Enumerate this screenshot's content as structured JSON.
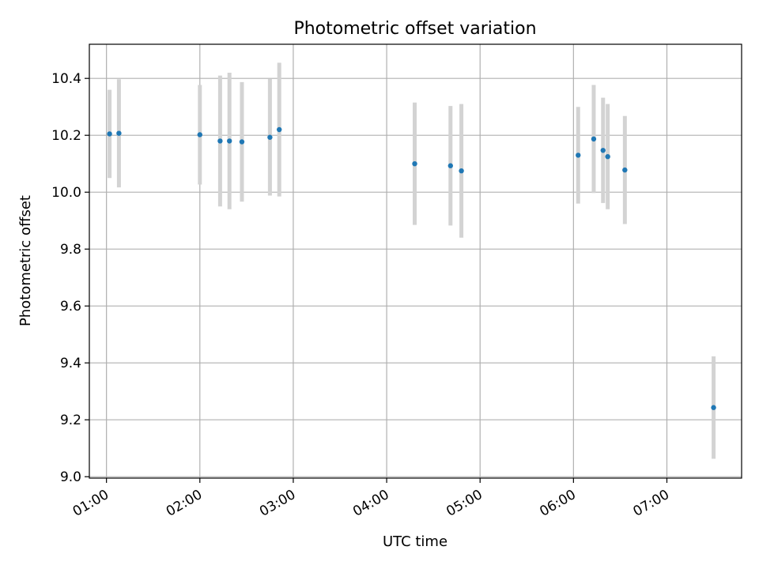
{
  "chart_data": {
    "type": "scatter",
    "title": "Photometric offset variation",
    "xlabel": "UTC time",
    "ylabel": "Photometric offset",
    "x_axis_type": "time",
    "xlim": [
      "00:49",
      "07:48"
    ],
    "ylim": [
      8.995,
      10.52
    ],
    "xticks": [
      "01:00",
      "02:00",
      "03:00",
      "04:00",
      "05:00",
      "06:00",
      "07:00"
    ],
    "yticks": [
      "9.0",
      "9.2",
      "9.4",
      "9.6",
      "9.8",
      "10.0",
      "10.2",
      "10.4"
    ],
    "grid": true,
    "errorbar_color": "#d3d3d3",
    "marker_color": "#1f77b4",
    "points": [
      {
        "x": "01:02",
        "y": 10.205,
        "err": 0.155
      },
      {
        "x": "01:08",
        "y": 10.207,
        "err": 0.19
      },
      {
        "x": "02:00",
        "y": 10.202,
        "err": 0.175
      },
      {
        "x": "02:13",
        "y": 10.18,
        "err": 0.23
      },
      {
        "x": "02:19",
        "y": 10.18,
        "err": 0.24
      },
      {
        "x": "02:27",
        "y": 10.177,
        "err": 0.21
      },
      {
        "x": "02:45",
        "y": 10.193,
        "err": 0.205
      },
      {
        "x": "02:51",
        "y": 10.22,
        "err": 0.235
      },
      {
        "x": "04:18",
        "y": 10.1,
        "err": 0.215
      },
      {
        "x": "04:41",
        "y": 10.093,
        "err": 0.21
      },
      {
        "x": "04:48",
        "y": 10.075,
        "err": 0.235
      },
      {
        "x": "06:03",
        "y": 10.13,
        "err": 0.17
      },
      {
        "x": "06:13",
        "y": 10.187,
        "err": 0.19
      },
      {
        "x": "06:19",
        "y": 10.147,
        "err": 0.185
      },
      {
        "x": "06:22",
        "y": 10.125,
        "err": 0.185
      },
      {
        "x": "06:33",
        "y": 10.078,
        "err": 0.19
      },
      {
        "x": "07:30",
        "y": 9.243,
        "err": 0.18
      }
    ]
  }
}
